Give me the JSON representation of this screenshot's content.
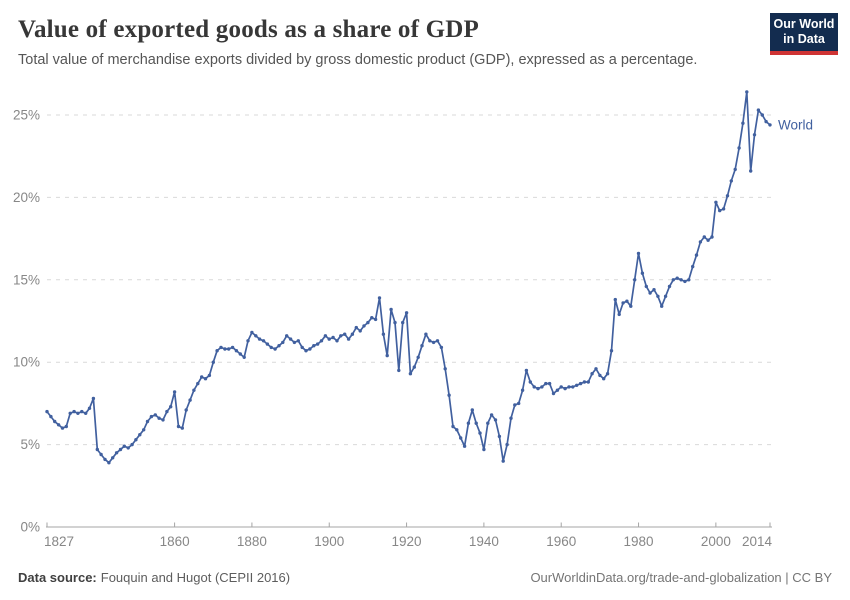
{
  "header": {
    "title": "Value of exported goods as a share of GDP",
    "subtitle": "Total value of merchandise exports divided by gross domestic product (GDP), expressed as a percentage."
  },
  "logo": {
    "line1": "Our World",
    "line2": "in Data",
    "bg_color": "#132c4f",
    "stripe_color": "#cf3434"
  },
  "chart_data": {
    "type": "line",
    "title": "Value of exported goods as a share of GDP",
    "unit": "%",
    "grid": true,
    "legend_position": "end-of-line",
    "start_year": 1827,
    "end_year": 2014,
    "ylim": [
      0,
      27
    ],
    "x_ticks": [
      1827,
      1860,
      1880,
      1900,
      1920,
      1940,
      1960,
      1980,
      2000,
      2014
    ],
    "y_ticks": [
      0,
      5,
      10,
      15,
      20,
      25
    ],
    "y_tick_labels": [
      "0%",
      "5%",
      "10%",
      "15%",
      "20%",
      "25%"
    ],
    "series": [
      {
        "name": "World",
        "color": "#41609f",
        "values": [
          7.0,
          6.7,
          6.4,
          6.2,
          6.0,
          6.1,
          6.9,
          7.0,
          6.9,
          7.0,
          6.9,
          7.2,
          7.8,
          4.7,
          4.4,
          4.1,
          3.9,
          4.2,
          4.5,
          4.7,
          4.9,
          4.8,
          5.0,
          5.3,
          5.6,
          5.9,
          6.4,
          6.7,
          6.8,
          6.6,
          6.5,
          7.0,
          7.3,
          8.2,
          6.1,
          6.0,
          7.1,
          7.7,
          8.3,
          8.7,
          9.1,
          9.0,
          9.2,
          10.0,
          10.7,
          10.9,
          10.8,
          10.8,
          10.9,
          10.7,
          10.5,
          10.3,
          11.3,
          11.8,
          11.6,
          11.4,
          11.3,
          11.1,
          10.9,
          10.8,
          11.0,
          11.2,
          11.6,
          11.4,
          11.2,
          11.3,
          10.9,
          10.7,
          10.8,
          11.0,
          11.1,
          11.3,
          11.6,
          11.4,
          11.5,
          11.3,
          11.6,
          11.7,
          11.4,
          11.7,
          12.1,
          11.9,
          12.2,
          12.4,
          12.7,
          12.6,
          13.9,
          11.7,
          10.4,
          13.2,
          12.4,
          9.5,
          12.4,
          13.0,
          9.3,
          9.7,
          10.3,
          11.0,
          11.7,
          11.3,
          11.2,
          11.3,
          10.9,
          9.6,
          8.0,
          6.1,
          5.9,
          5.4,
          4.9,
          6.3,
          7.1,
          6.3,
          5.7,
          4.7,
          6.3,
          6.8,
          6.5,
          5.5,
          4.0,
          5.0,
          6.6,
          7.4,
          7.5,
          8.3,
          9.5,
          8.8,
          8.5,
          8.4,
          8.5,
          8.7,
          8.7,
          8.1,
          8.3,
          8.5,
          8.4,
          8.5,
          8.5,
          8.6,
          8.7,
          8.8,
          8.8,
          9.3,
          9.6,
          9.2,
          9.0,
          9.3,
          10.7,
          13.8,
          12.9,
          13.6,
          13.7,
          13.4,
          15.0,
          16.6,
          15.4,
          14.6,
          14.2,
          14.4,
          14.0,
          13.4,
          14.0,
          14.6,
          15.0,
          15.1,
          15.0,
          14.9,
          15.0,
          15.8,
          16.5,
          17.3,
          17.6,
          17.4,
          17.6,
          19.7,
          19.2,
          19.3,
          20.1,
          21.0,
          21.7,
          23.0,
          24.5,
          26.4,
          21.6,
          23.8,
          25.3,
          25.0,
          24.6,
          24.4
        ]
      }
    ],
    "colors": {
      "gridline": "#d9d9d9",
      "axis": "#a5a5a5",
      "tick_label": "#878787"
    }
  },
  "footer": {
    "source_label": "Data source:",
    "source_value": "Fouquin and Hugot (CEPII 2016)",
    "credit": "OurWorldinData.org/trade-and-globalization | CC BY"
  }
}
